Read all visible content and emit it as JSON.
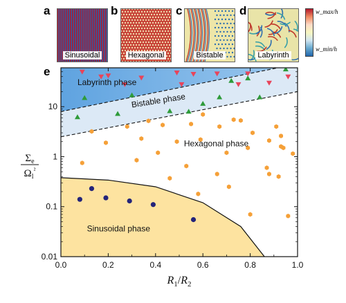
{
  "panels": {
    "a": {
      "letter": "a",
      "label": "Sinusoidal"
    },
    "b": {
      "letter": "b",
      "label": "Hexagonal"
    },
    "c": {
      "letter": "c",
      "label": "Bistable"
    },
    "d": {
      "letter": "d",
      "label": "Labyrinth"
    },
    "e": {
      "letter": "e"
    }
  },
  "colorbar": {
    "max_label": "w_max/h",
    "min_label": "w_min/h",
    "colors": [
      "#b2182b",
      "#ef8a62",
      "#fddbc7",
      "#f7f7c0",
      "#d1e5f0",
      "#67a9cf",
      "#2166ac"
    ]
  },
  "chart_data": {
    "type": "scatter",
    "xlabel": "R1/R2",
    "ylabel": "Σe / Ωl²",
    "xlim": [
      0,
      1
    ],
    "ylim": [
      0.01,
      60
    ],
    "yscale": "log",
    "xticks": [
      "0.0",
      "0.2",
      "0.4",
      "0.6",
      "0.8",
      "1.0"
    ],
    "yticks": [
      "0.01",
      "0.1",
      "1",
      "10"
    ],
    "regions": [
      {
        "name": "Labyrinth phase",
        "color": "#5fa3e0"
      },
      {
        "name": "Bistable phase",
        "color": "#dce9f6"
      },
      {
        "name": "Hexagonal phase",
        "color": "#ffffff"
      },
      {
        "name": "Sinusoidal phase",
        "color": "#fde3a0"
      }
    ],
    "series": [
      {
        "marker": "triangle-down",
        "color": "#e8445a",
        "points": [
          [
            0.09,
            50
          ],
          [
            0.17,
            40
          ],
          [
            0.2,
            42
          ],
          [
            0.27,
            28
          ],
          [
            0.34,
            38
          ],
          [
            0.49,
            48
          ],
          [
            0.51,
            28
          ],
          [
            0.56,
            45
          ],
          [
            0.66,
            46
          ],
          [
            0.75,
            28
          ],
          [
            0.79,
            46
          ],
          [
            0.88,
            30
          ],
          [
            0.96,
            40
          ]
        ]
      },
      {
        "marker": "triangle-up",
        "color": "#2e9b3a",
        "points": [
          [
            0.07,
            6.2
          ],
          [
            0.1,
            15
          ],
          [
            0.24,
            7.2
          ],
          [
            0.3,
            17
          ],
          [
            0.46,
            8.2
          ],
          [
            0.54,
            8
          ],
          [
            0.6,
            11.5
          ],
          [
            0.67,
            15.5
          ],
          [
            0.72,
            33
          ],
          [
            0.79,
            37
          ],
          [
            0.84,
            15.5
          ],
          [
            0.95,
            56
          ]
        ]
      },
      {
        "marker": "hexagon",
        "color": "#f5a038",
        "points": [
          [
            0.09,
            0.75
          ],
          [
            0.13,
            3.2
          ],
          [
            0.19,
            1.9
          ],
          [
            0.28,
            4
          ],
          [
            0.32,
            0.85
          ],
          [
            0.34,
            2.3
          ],
          [
            0.37,
            5.2
          ],
          [
            0.41,
            1.2
          ],
          [
            0.43,
            4.3
          ],
          [
            0.46,
            0.37
          ],
          [
            0.49,
            2
          ],
          [
            0.53,
            0.65
          ],
          [
            0.55,
            4.5
          ],
          [
            0.58,
            0.18
          ],
          [
            0.59,
            2.2
          ],
          [
            0.6,
            7
          ],
          [
            0.66,
            0.45
          ],
          [
            0.67,
            4
          ],
          [
            0.7,
            1.2
          ],
          [
            0.71,
            0.25
          ],
          [
            0.73,
            5.5
          ],
          [
            0.76,
            5.3
          ],
          [
            0.79,
            1.5
          ],
          [
            0.8,
            0.07
          ],
          [
            0.81,
            3
          ],
          [
            0.87,
            0.6
          ],
          [
            0.88,
            0.45
          ],
          [
            0.88,
            2.1
          ],
          [
            0.91,
            4
          ],
          [
            0.92,
            0.4
          ],
          [
            0.93,
            2.6
          ],
          [
            0.93,
            1.6
          ],
          [
            0.94,
            1.5
          ],
          [
            0.96,
            0.065
          ],
          [
            0.98,
            1.15
          ]
        ]
      },
      {
        "marker": "circle",
        "color": "#24247a",
        "points": [
          [
            0.08,
            0.14
          ],
          [
            0.13,
            0.23
          ],
          [
            0.19,
            0.15
          ],
          [
            0.29,
            0.13
          ],
          [
            0.39,
            0.11
          ],
          [
            0.56,
            0.055
          ]
        ]
      }
    ],
    "boundaries": [
      {
        "style": "dashed",
        "points": [
          [
            0,
            8
          ],
          [
            1,
            72
          ]
        ]
      },
      {
        "style": "dashed",
        "points": [
          [
            0,
            2.5
          ],
          [
            1,
            20
          ]
        ]
      },
      {
        "style": "solid",
        "points": [
          [
            0,
            0.38
          ],
          [
            0.2,
            0.34
          ],
          [
            0.4,
            0.25
          ],
          [
            0.6,
            0.12
          ],
          [
            0.76,
            0.04
          ],
          [
            0.86,
            0.01
          ]
        ]
      }
    ]
  }
}
